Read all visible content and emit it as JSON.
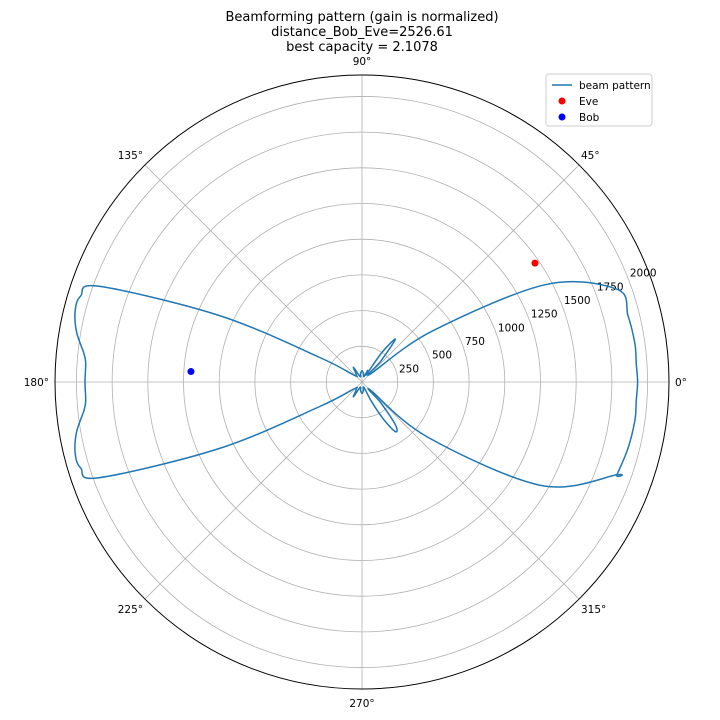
{
  "chart_data": {
    "type": "polar",
    "title": [
      "Beamforming pattern (gain is normalized)",
      "distance_Bob_Eve=2526.61",
      "best capacity = 2.1078"
    ],
    "angle_ticks": [
      "0°",
      "45°",
      "90°",
      "135°",
      "180°",
      "225°",
      "270°",
      "315°"
    ],
    "angle_tick_values_deg": [
      0,
      45,
      90,
      135,
      180,
      225,
      270,
      315
    ],
    "r_ticks": [
      "250",
      "500",
      "750",
      "1000",
      "1250",
      "1500",
      "1750",
      "2000"
    ],
    "r_tick_values": [
      250,
      500,
      750,
      1000,
      1250,
      1500,
      1750,
      2000
    ],
    "rlim": [
      0,
      2150
    ],
    "grid": true,
    "legend": {
      "placement": "top-right",
      "entries": [
        {
          "label": "beam pattern",
          "marker": "line",
          "color": "#1f77b4"
        },
        {
          "label": "Eve",
          "marker": "dot",
          "color": "#ff0000"
        },
        {
          "label": "Bob",
          "marker": "dot",
          "color": "#0000ff"
        }
      ]
    },
    "series": [
      {
        "name": "beam pattern",
        "color": "#1f77b4",
        "theta_deg": [
          -20,
          -14,
          -8,
          -4,
          0,
          4,
          8,
          14,
          20,
          28,
          36,
          44,
          48,
          52,
          56,
          60,
          64,
          70,
          80,
          90,
          100,
          110,
          120,
          130,
          140,
          150,
          155,
          160,
          163,
          166,
          170,
          174,
          176,
          180,
          184,
          186,
          190,
          194,
          197,
          200,
          205,
          210,
          220,
          230,
          240,
          250,
          260,
          270,
          280,
          290,
          296,
          300,
          304,
          308,
          312,
          316,
          320,
          330,
          340
        ],
        "r": [
          1900,
          1920,
          1930,
          1925,
          1930,
          1925,
          1930,
          1920,
          1900,
          1450,
          600,
          80,
          200,
          380,
          250,
          60,
          90,
          40,
          60,
          80,
          60,
          40,
          120,
          60,
          80,
          350,
          1100,
          1960,
          2060,
          2070,
          2030,
          1960,
          1940,
          1940,
          1940,
          1960,
          2030,
          2070,
          2060,
          1960,
          1100,
          350,
          80,
          60,
          120,
          40,
          60,
          80,
          60,
          40,
          150,
          300,
          420,
          380,
          200,
          80,
          600,
          1450,
          1900
        ]
      },
      {
        "name": "Eve",
        "type": "scatter",
        "color": "#ff0000",
        "theta_deg": [
          34.5
        ],
        "r": [
          1470
        ]
      },
      {
        "name": "Bob",
        "type": "scatter",
        "color": "#0000ff",
        "theta_deg": [
          176.5
        ],
        "r": [
          1200
        ]
      }
    ]
  }
}
